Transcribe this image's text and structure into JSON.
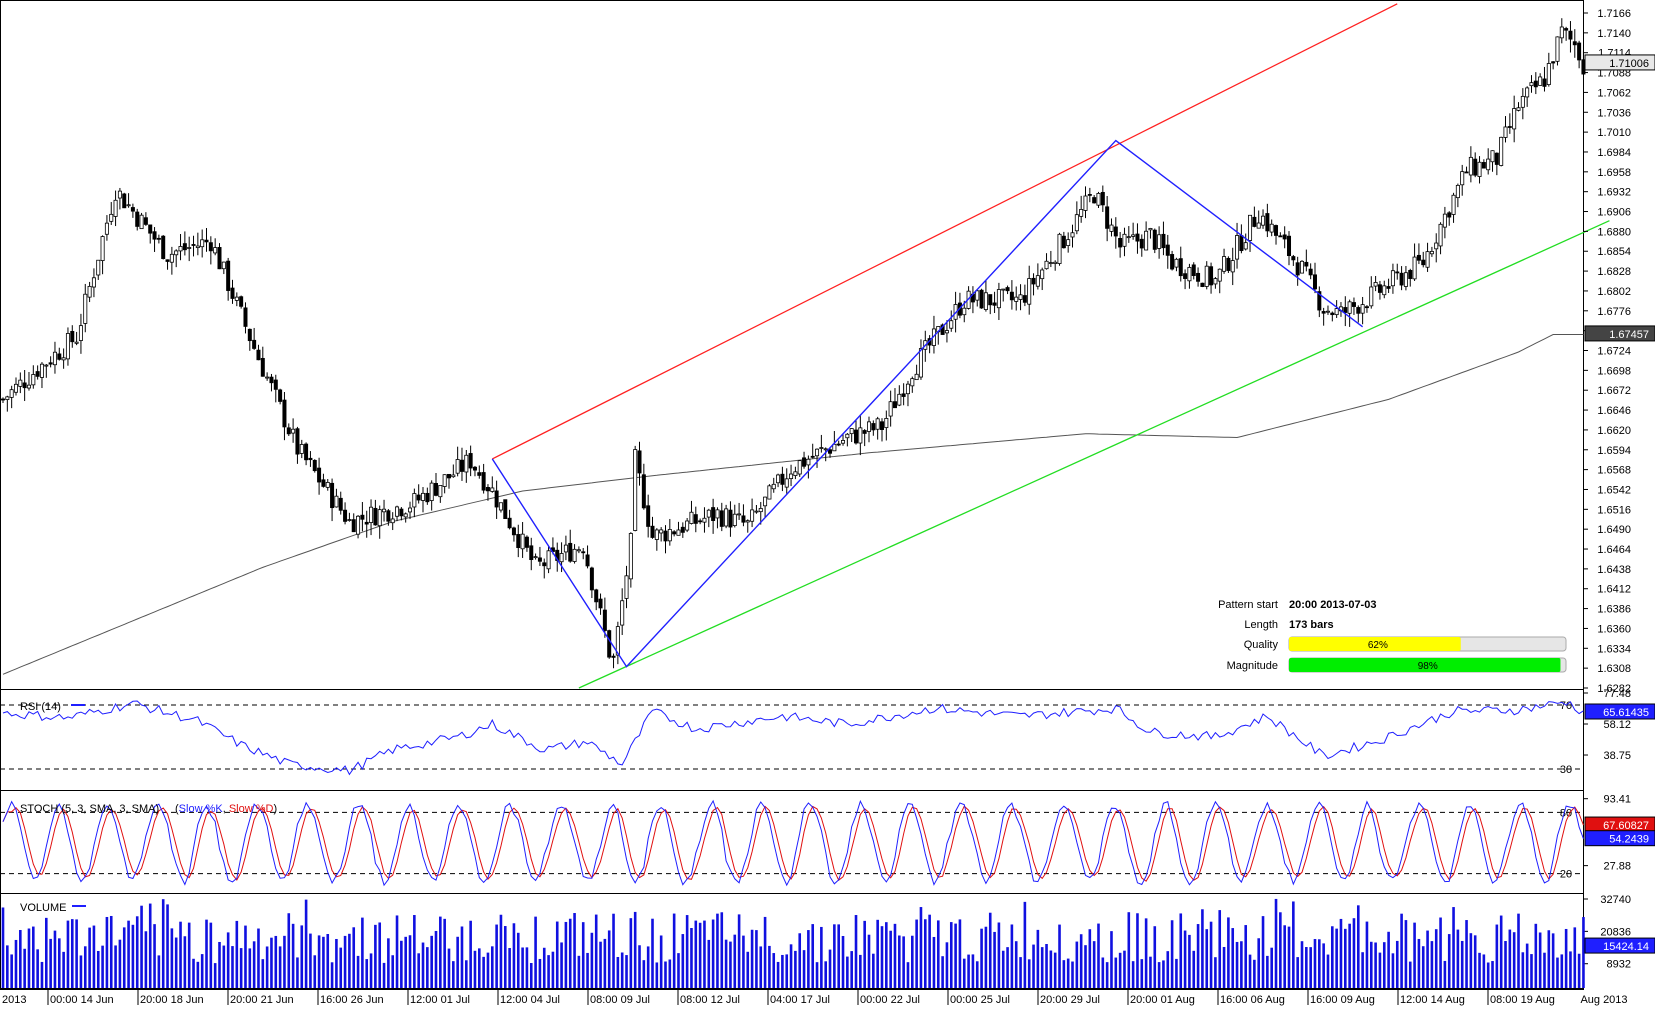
{
  "chart_data": {
    "type": "candlestick",
    "price_axis": {
      "ticks": [
        "1.7166",
        "1.7140",
        "1.7114",
        "1.7088",
        "1.7062",
        "1.7036",
        "1.7010",
        "1.6984",
        "1.6958",
        "1.6932",
        "1.6906",
        "1.6880",
        "1.6854",
        "1.6828",
        "1.6802",
        "1.6776",
        "1.6750",
        "1.6724",
        "1.6698",
        "1.6672",
        "1.6646",
        "1.6620",
        "1.6594",
        "1.6568",
        "1.6542",
        "1.6516",
        "1.6490",
        "1.6464",
        "1.6438",
        "1.6412",
        "1.6386",
        "1.6360",
        "1.6334",
        "1.6308",
        "1.6282"
      ],
      "range": [
        1.6282,
        1.7166
      ],
      "current_price_label": "1.71006",
      "ma_label": "1.67457"
    },
    "x_axis_labels": [
      "2013",
      "00:00 14 Jun",
      "20:00 18 Jun",
      "20:00 21 Jun",
      "16:00 26 Jun",
      "12:00 01 Jul",
      "12:00 04 Jul",
      "08:00 09 Jul",
      "08:00 12 Jul",
      "04:00 17 Jul",
      "00:00 22 Jul",
      "00:00 25 Jul",
      "20:00 29 Jul",
      "20:00 01 Aug",
      "16:00 06 Aug",
      "16:00 09 Aug",
      "12:00 14 Aug",
      "08:00 19 Aug",
      "Aug 2013"
    ],
    "price_anchors": [
      {
        "bar": 0,
        "price": 1.666
      },
      {
        "bar": 8,
        "price": 1.67
      },
      {
        "bar": 17,
        "price": 1.6742
      },
      {
        "bar": 26,
        "price": 1.6935
      },
      {
        "bar": 38,
        "price": 1.685
      },
      {
        "bar": 48,
        "price": 1.6868
      },
      {
        "bar": 58,
        "price": 1.6728
      },
      {
        "bar": 68,
        "price": 1.6595
      },
      {
        "bar": 80,
        "price": 1.65
      },
      {
        "bar": 95,
        "price": 1.6525
      },
      {
        "bar": 108,
        "price": 1.658
      },
      {
        "bar": 113,
        "price": 1.654
      },
      {
        "bar": 123,
        "price": 1.644
      },
      {
        "bar": 134,
        "price": 1.647
      },
      {
        "bar": 140,
        "price": 1.633
      },
      {
        "bar": 141,
        "price": 1.6318
      },
      {
        "bar": 145,
        "price": 1.647
      },
      {
        "bar": 146,
        "price": 1.658
      },
      {
        "bar": 150,
        "price": 1.648
      },
      {
        "bar": 165,
        "price": 1.651
      },
      {
        "bar": 172,
        "price": 1.6495
      },
      {
        "bar": 182,
        "price": 1.657
      },
      {
        "bar": 195,
        "price": 1.661
      },
      {
        "bar": 203,
        "price": 1.6625
      },
      {
        "bar": 210,
        "price": 1.67
      },
      {
        "bar": 222,
        "price": 1.679
      },
      {
        "bar": 235,
        "price": 1.679
      },
      {
        "bar": 245,
        "price": 1.687
      },
      {
        "bar": 252,
        "price": 1.693
      },
      {
        "bar": 258,
        "price": 1.686
      },
      {
        "bar": 265,
        "price": 1.6875
      },
      {
        "bar": 270,
        "price": 1.684
      },
      {
        "bar": 280,
        "price": 1.6815
      },
      {
        "bar": 290,
        "price": 1.6905
      },
      {
        "bar": 300,
        "price": 1.683
      },
      {
        "bar": 305,
        "price": 1.678
      },
      {
        "bar": 309,
        "price": 1.6772
      },
      {
        "bar": 316,
        "price": 1.6795
      },
      {
        "bar": 328,
        "price": 1.684
      },
      {
        "bar": 338,
        "price": 1.696
      },
      {
        "bar": 345,
        "price": 1.6975
      },
      {
        "bar": 350,
        "price": 1.7045
      },
      {
        "bar": 356,
        "price": 1.708
      },
      {
        "bar": 360,
        "price": 1.714
      },
      {
        "bar": 363,
        "price": 1.7125
      },
      {
        "bar": 365,
        "price": 1.71
      }
    ],
    "ma_anchors": [
      {
        "bar": 0,
        "price": 1.63
      },
      {
        "bar": 60,
        "price": 1.644
      },
      {
        "bar": 90,
        "price": 1.65
      },
      {
        "bar": 120,
        "price": 1.654
      },
      {
        "bar": 150,
        "price": 1.656
      },
      {
        "bar": 200,
        "price": 1.659
      },
      {
        "bar": 250,
        "price": 1.6615
      },
      {
        "bar": 285,
        "price": 1.661
      },
      {
        "bar": 320,
        "price": 1.666
      },
      {
        "bar": 350,
        "price": 1.6722
      },
      {
        "bar": 358,
        "price": 1.6745
      },
      {
        "bar": 365,
        "price": 1.6745
      }
    ],
    "pattern": {
      "label_start": "Pattern start",
      "value_start": "20:00 2013-07-03",
      "label_length": "Length",
      "value_length": "173 bars",
      "label_quality": "Quality",
      "quality_pct": 62,
      "quality_text": "62%",
      "label_magnitude": "Magnitude",
      "magnitude_pct": 98,
      "magnitude_text": "98%",
      "zigzag": [
        {
          "bar": 113,
          "price": 1.6582
        },
        {
          "bar": 144,
          "price": 1.631
        },
        {
          "bar": 257,
          "price": 1.6999
        },
        {
          "bar": 314,
          "price": 1.6755
        }
      ],
      "upper_channel": [
        {
          "bar": 113,
          "price": 1.6582
        },
        {
          "bar": 322,
          "price": 1.7178
        }
      ],
      "lower_channel": [
        {
          "bar": 133,
          "price": 1.6282
        },
        {
          "bar": 371,
          "price": 1.6894
        }
      ]
    },
    "rsi": {
      "label": "RSI (14)",
      "levels": [
        70,
        30
      ],
      "level_labels": [
        "70",
        "30"
      ],
      "axis_ticks": [
        "77.48",
        "58.12",
        "38.75"
      ],
      "range": [
        19.4,
        77.48
      ],
      "last_value": "65.61435",
      "anchors": [
        {
          "bar": 0,
          "v": 65
        },
        {
          "bar": 15,
          "v": 62
        },
        {
          "bar": 30,
          "v": 71
        },
        {
          "bar": 45,
          "v": 60
        },
        {
          "bar": 55,
          "v": 45
        },
        {
          "bar": 66,
          "v": 33
        },
        {
          "bar": 80,
          "v": 29
        },
        {
          "bar": 90,
          "v": 42
        },
        {
          "bar": 105,
          "v": 50
        },
        {
          "bar": 113,
          "v": 58
        },
        {
          "bar": 125,
          "v": 42
        },
        {
          "bar": 135,
          "v": 47
        },
        {
          "bar": 143,
          "v": 33
        },
        {
          "bar": 150,
          "v": 66
        },
        {
          "bar": 160,
          "v": 55
        },
        {
          "bar": 180,
          "v": 63
        },
        {
          "bar": 195,
          "v": 58
        },
        {
          "bar": 215,
          "v": 68
        },
        {
          "bar": 235,
          "v": 63
        },
        {
          "bar": 257,
          "v": 68
        },
        {
          "bar": 265,
          "v": 53
        },
        {
          "bar": 280,
          "v": 50
        },
        {
          "bar": 292,
          "v": 63
        },
        {
          "bar": 305,
          "v": 38
        },
        {
          "bar": 318,
          "v": 48
        },
        {
          "bar": 335,
          "v": 66
        },
        {
          "bar": 350,
          "v": 67
        },
        {
          "bar": 361,
          "v": 72
        },
        {
          "bar": 365,
          "v": 65.6
        }
      ]
    },
    "stoch": {
      "label_main": "STOCH (5, 3, SMA, 3, SMA)",
      "label_k": "Slow %K",
      "label_d": "Slow %D",
      "levels": [
        80,
        20
      ],
      "level_labels": [
        "80",
        "20"
      ],
      "axis_ticks": [
        "93.41",
        "27.88"
      ],
      "range": [
        5,
        98
      ],
      "last_k": "54.2439",
      "last_d": "67.60827"
    },
    "volume": {
      "label": "VOLUME",
      "axis_ticks": [
        "32740",
        "20836",
        "8932"
      ],
      "range": [
        0,
        32740
      ],
      "last_value": "15424.14"
    }
  }
}
